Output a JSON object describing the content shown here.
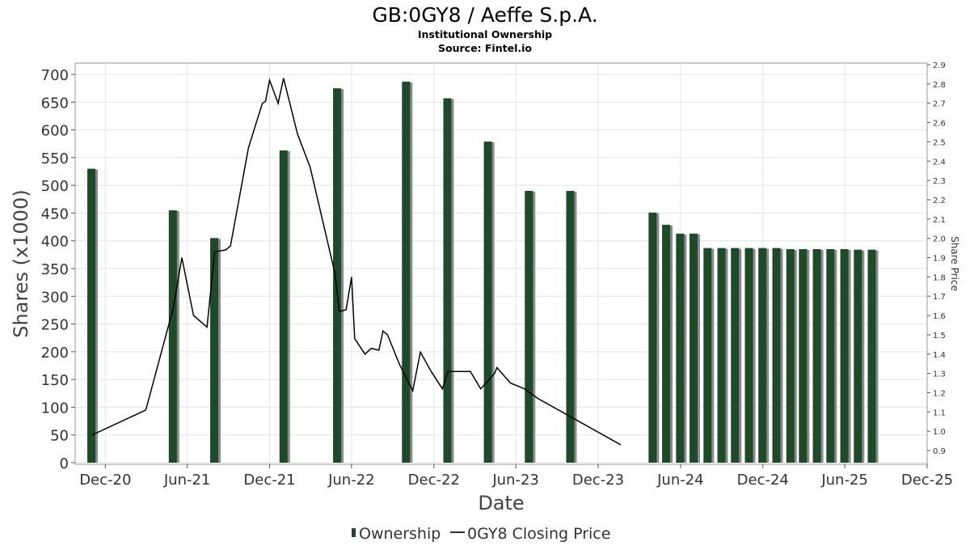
{
  "chart_data": {
    "type": "bar",
    "title": "GB:0GY8 / Aeffe S.p.A.",
    "subtitle": "Institutional Ownership",
    "source": "Source: Fintel.io",
    "xlabel": "Date",
    "ylabel": "Shares (x1000)",
    "y2label": "Share Price",
    "ylim": [
      0,
      720
    ],
    "y2lim": [
      0.83,
      2.9
    ],
    "xlim": [
      "2020-09-25",
      "2025-12-01"
    ],
    "grid": true,
    "legend_position": "bottom-center",
    "colors": {
      "ownership": "#1f4a2a",
      "ownership_shadow": "#8a8a8a",
      "price": "#000000",
      "grid": "#e3e3e3"
    },
    "y_ticks": [
      0,
      50,
      100,
      150,
      200,
      250,
      300,
      350,
      400,
      450,
      500,
      550,
      600,
      650,
      700
    ],
    "y2_ticks": [
      0.9,
      1.0,
      1.1,
      1.2,
      1.3,
      1.4,
      1.5,
      1.6,
      1.7,
      1.8,
      1.9,
      2.0,
      2.1,
      2.2,
      2.3,
      2.4,
      2.5,
      2.6,
      2.7,
      2.8,
      2.9
    ],
    "x_ticks": [
      {
        "label": "Dec-20",
        "date": "2020-12-01"
      },
      {
        "label": "Jun-21",
        "date": "2021-06-01"
      },
      {
        "label": "Dec-21",
        "date": "2021-12-01"
      },
      {
        "label": "Jun-22",
        "date": "2022-06-01"
      },
      {
        "label": "Dec-22",
        "date": "2022-12-01"
      },
      {
        "label": "Jun-23",
        "date": "2023-06-01"
      },
      {
        "label": "Dec-23",
        "date": "2023-12-01"
      },
      {
        "label": "Jun-24",
        "date": "2024-06-01"
      },
      {
        "label": "Dec-24",
        "date": "2024-12-01"
      },
      {
        "label": "Jun-25",
        "date": "2025-06-01"
      },
      {
        "label": "Dec-25",
        "date": "2025-12-01"
      }
    ],
    "series": [
      {
        "name": "Ownership",
        "kind": "bar",
        "axis": "left",
        "points": [
          {
            "date": "2020-10-31",
            "value": 530
          },
          {
            "date": "2021-04-30",
            "value": 455
          },
          {
            "date": "2021-07-31",
            "value": 405
          },
          {
            "date": "2022-01-01",
            "value": 563
          },
          {
            "date": "2022-04-30",
            "value": 675
          },
          {
            "date": "2022-09-30",
            "value": 687
          },
          {
            "date": "2022-12-31",
            "value": 657
          },
          {
            "date": "2023-03-31",
            "value": 579
          },
          {
            "date": "2023-06-30",
            "value": 490
          },
          {
            "date": "2023-09-30",
            "value": 490
          },
          {
            "date": "2024-03-31",
            "value": 451
          },
          {
            "date": "2024-04-30",
            "value": 429
          },
          {
            "date": "2024-05-31",
            "value": 413
          },
          {
            "date": "2024-06-30",
            "value": 413
          },
          {
            "date": "2024-07-31",
            "value": 387
          },
          {
            "date": "2024-08-31",
            "value": 387
          },
          {
            "date": "2024-09-30",
            "value": 387
          },
          {
            "date": "2024-10-31",
            "value": 387
          },
          {
            "date": "2024-11-30",
            "value": 387
          },
          {
            "date": "2024-12-31",
            "value": 387
          },
          {
            "date": "2025-01-31",
            "value": 385
          },
          {
            "date": "2025-02-28",
            "value": 385
          },
          {
            "date": "2025-03-31",
            "value": 385
          },
          {
            "date": "2025-04-30",
            "value": 385
          },
          {
            "date": "2025-05-31",
            "value": 385
          },
          {
            "date": "2025-06-30",
            "value": 384
          },
          {
            "date": "2025-07-31",
            "value": 384
          }
        ]
      },
      {
        "name": "0GY8 Closing Price",
        "kind": "line",
        "axis": "right",
        "points": [
          {
            "date": "2020-11-01",
            "value": 0.98
          },
          {
            "date": "2021-03-01",
            "value": 1.11
          },
          {
            "date": "2021-05-01",
            "value": 1.64
          },
          {
            "date": "2021-05-20",
            "value": 1.9
          },
          {
            "date": "2021-06-15",
            "value": 1.6
          },
          {
            "date": "2021-07-15",
            "value": 1.54
          },
          {
            "date": "2021-08-01",
            "value": 1.93
          },
          {
            "date": "2021-08-25",
            "value": 1.94
          },
          {
            "date": "2021-09-05",
            "value": 1.96
          },
          {
            "date": "2021-10-15",
            "value": 2.47
          },
          {
            "date": "2021-11-15",
            "value": 2.7
          },
          {
            "date": "2021-11-22",
            "value": 2.71
          },
          {
            "date": "2021-12-01",
            "value": 2.82
          },
          {
            "date": "2021-12-20",
            "value": 2.7
          },
          {
            "date": "2022-01-01",
            "value": 2.83
          },
          {
            "date": "2022-02-01",
            "value": 2.54
          },
          {
            "date": "2022-03-01",
            "value": 2.37
          },
          {
            "date": "2022-04-01",
            "value": 2.06
          },
          {
            "date": "2022-04-25",
            "value": 1.82
          },
          {
            "date": "2022-05-05",
            "value": 1.62
          },
          {
            "date": "2022-05-20",
            "value": 1.63
          },
          {
            "date": "2022-06-01",
            "value": 1.8
          },
          {
            "date": "2022-06-08",
            "value": 1.48
          },
          {
            "date": "2022-07-01",
            "value": 1.4
          },
          {
            "date": "2022-07-15",
            "value": 1.43
          },
          {
            "date": "2022-08-01",
            "value": 1.42
          },
          {
            "date": "2022-08-10",
            "value": 1.52
          },
          {
            "date": "2022-08-20",
            "value": 1.5
          },
          {
            "date": "2022-09-15",
            "value": 1.35
          },
          {
            "date": "2022-10-15",
            "value": 1.21
          },
          {
            "date": "2022-11-01",
            "value": 1.41
          },
          {
            "date": "2022-11-25",
            "value": 1.31
          },
          {
            "date": "2022-12-20",
            "value": 1.22
          },
          {
            "date": "2023-01-01",
            "value": 1.31
          },
          {
            "date": "2023-02-01",
            "value": 1.31
          },
          {
            "date": "2023-02-20",
            "value": 1.31
          },
          {
            "date": "2023-03-15",
            "value": 1.22
          },
          {
            "date": "2023-04-15",
            "value": 1.3
          },
          {
            "date": "2023-04-20",
            "value": 1.33
          },
          {
            "date": "2023-05-20",
            "value": 1.25
          },
          {
            "date": "2023-06-20",
            "value": 1.22
          },
          {
            "date": "2023-07-20",
            "value": 1.17
          },
          {
            "date": "2024-01-20",
            "value": 0.93
          }
        ]
      }
    ]
  },
  "legend": {
    "ownership_label": "Ownership",
    "price_label": "0GY8 Closing Price"
  }
}
